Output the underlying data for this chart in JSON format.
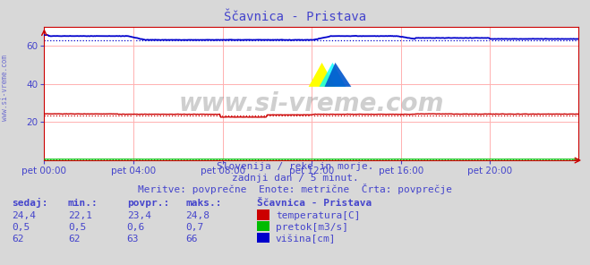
{
  "title": "Ščavnica - Pristava",
  "bg_color": "#d8d8d8",
  "plot_bg_color": "#ffffff",
  "grid_color": "#ffb0b0",
  "x_ticks_labels": [
    "pet 00:00",
    "pet 04:00",
    "pet 08:00",
    "pet 12:00",
    "pet 16:00",
    "pet 20:00"
  ],
  "x_ticks_positions": [
    0,
    96,
    192,
    288,
    384,
    480
  ],
  "total_points": 576,
  "ylim": [
    0,
    70
  ],
  "yticks": [
    20,
    40,
    60
  ],
  "temp_avg": 23.4,
  "temp_color": "#cc0000",
  "pretok_avg": 0.6,
  "pretok_color": "#00bb00",
  "visina_avg": 63.0,
  "visina_color": "#0000cc",
  "subtitle1": "Slovenija / reke in morje.",
  "subtitle2": "zadnji dan / 5 minut.",
  "subtitle3": "Meritve: povprečne  Enote: metrične  Črta: povprečje",
  "text_color": "#4444cc",
  "watermark": "www.si-vreme.com",
  "legend_title": "Ščavnica - Pristava",
  "table_headers": [
    "sedaj:",
    "min.:",
    "povpr.:",
    "maks.:"
  ],
  "table_data": [
    [
      "24,4",
      "22,1",
      "23,4",
      "24,8"
    ],
    [
      "0,5",
      "0,5",
      "0,6",
      "0,7"
    ],
    [
      "62",
      "62",
      "63",
      "66"
    ]
  ],
  "table_labels": [
    "temperatura[C]",
    "pretok[m3/s]",
    "višina[cm]"
  ],
  "table_colors": [
    "#cc0000",
    "#00bb00",
    "#0000cc"
  ],
  "arrow_color": "#cc0000",
  "spine_color": "#cc0000"
}
